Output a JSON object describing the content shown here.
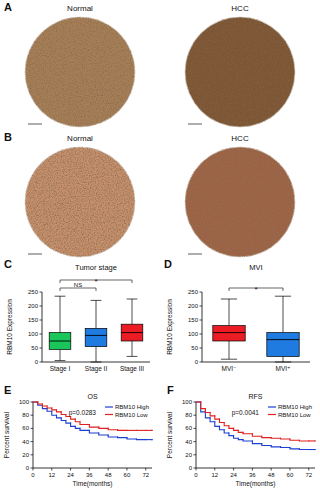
{
  "images": [
    {
      "panel": "A",
      "titles": [
        "Normal",
        "HCC"
      ]
    },
    {
      "panel": "B",
      "titles": [
        "Normal",
        "HCC"
      ]
    }
  ],
  "chart_data": [
    {
      "panel": "C",
      "type": "box",
      "title": "Tumor stage",
      "y_label": "RBM10 Expression",
      "categories": [
        "Stage I",
        "Stage II",
        "Stage III"
      ],
      "colors": [
        "#19c65a",
        "#1f7be0",
        "#ec1c24"
      ],
      "boxes": [
        {
          "min": 5,
          "q1": 45,
          "median": 75,
          "q3": 105,
          "max": 235
        },
        {
          "min": 0,
          "q1": 55,
          "median": 95,
          "q3": 120,
          "max": 220
        },
        {
          "min": 20,
          "q1": 75,
          "median": 105,
          "q3": 135,
          "max": 225
        }
      ],
      "ylim": [
        0,
        250
      ],
      "yticks": [
        0,
        50,
        100,
        150,
        200,
        250
      ],
      "comparisons": [
        {
          "between": [
            0,
            1
          ],
          "label": "NS"
        },
        {
          "between": [
            0,
            2
          ],
          "label": "*"
        }
      ]
    },
    {
      "panel": "D",
      "type": "box",
      "title": "MVI",
      "y_label": "RBM10 Expression",
      "categories": [
        "MVI⁻",
        "MVI⁺"
      ],
      "colors": [
        "#ec1c24",
        "#1f7be0"
      ],
      "boxes": [
        {
          "min": 10,
          "q1": 75,
          "median": 105,
          "q3": 130,
          "max": 225
        },
        {
          "min": 0,
          "q1": 20,
          "median": 80,
          "q3": 105,
          "max": 235
        }
      ],
      "ylim": [
        0,
        250
      ],
      "yticks": [
        0,
        50,
        100,
        150,
        200,
        250
      ],
      "comparisons": [
        {
          "between": [
            0,
            1
          ],
          "label": "*"
        }
      ]
    },
    {
      "panel": "E",
      "type": "line",
      "title": "OS",
      "x_label": "Time(months)",
      "y_label": "Percent survival",
      "x": [
        0,
        3,
        6,
        9,
        12,
        15,
        18,
        21,
        24,
        27,
        30,
        36,
        42,
        48,
        54,
        60,
        66,
        72,
        76
      ],
      "series": [
        {
          "name": "RBM10 High",
          "color": "#1b3fd1",
          "values": [
            100,
            95,
            90,
            86,
            80,
            76,
            72,
            68,
            63,
            60,
            57,
            53,
            50,
            47,
            46,
            44,
            43,
            43,
            43
          ]
        },
        {
          "name": "RBM10 Low",
          "color": "#e0201e",
          "values": [
            100,
            97,
            94,
            91,
            88,
            85,
            81,
            78,
            74,
            70,
            66,
            62,
            60,
            58,
            57,
            57,
            57,
            57,
            57
          ]
        }
      ],
      "xlim": [
        0,
        76
      ],
      "xticks": [
        0,
        12,
        24,
        36,
        48,
        60,
        72
      ],
      "ylim": [
        0,
        100
      ],
      "yticks": [
        0,
        20,
        40,
        60,
        80,
        100
      ],
      "legend": "upper right",
      "line_style": "step",
      "annotations": [
        "p=0.0283"
      ]
    },
    {
      "panel": "F",
      "type": "line",
      "title": "RFS",
      "x_label": "Time(months)",
      "y_label": "Percent survival",
      "x": [
        0,
        3,
        6,
        9,
        12,
        15,
        18,
        21,
        24,
        27,
        30,
        36,
        42,
        48,
        54,
        60,
        66,
        72,
        76
      ],
      "series": [
        {
          "name": "RBM10 High",
          "color": "#1b3fd1",
          "values": [
            100,
            85,
            76,
            70,
            63,
            58,
            53,
            49,
            45,
            43,
            41,
            37,
            34,
            32,
            31,
            29,
            28,
            28,
            28
          ]
        },
        {
          "name": "RBM10 Low",
          "color": "#e0201e",
          "values": [
            100,
            90,
            84,
            79,
            74,
            69,
            64,
            60,
            57,
            54,
            52,
            48,
            46,
            45,
            44,
            42,
            41,
            41,
            41
          ]
        }
      ],
      "xlim": [
        0,
        76
      ],
      "xticks": [
        0,
        12,
        24,
        36,
        48,
        60,
        72
      ],
      "ylim": [
        0,
        100
      ],
      "yticks": [
        0,
        20,
        40,
        60,
        80,
        100
      ],
      "legend": "upper right",
      "line_style": "step",
      "annotations": [
        "p=0.0041"
      ]
    }
  ]
}
